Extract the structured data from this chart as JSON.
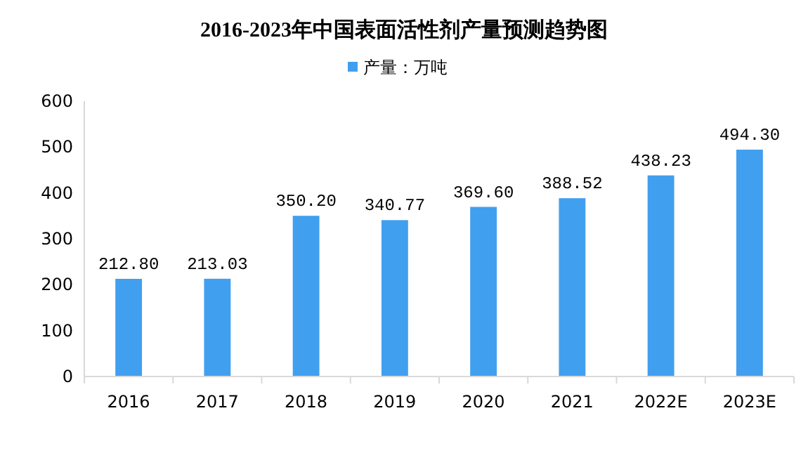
{
  "chart_data": {
    "type": "bar",
    "title": "2016-2023年中国表面活性剂产量预测趋势图",
    "categories": [
      "2016",
      "2017",
      "2018",
      "2019",
      "2020",
      "2021",
      "2022E",
      "2023E"
    ],
    "series": [
      {
        "name": "产量：万吨",
        "color": "#419ff0",
        "values": [
          212.8,
          213.03,
          350.2,
          340.77,
          369.6,
          388.52,
          438.23,
          494.3
        ],
        "value_labels": [
          "212.80",
          "213.03",
          "350.20",
          "340.77",
          "369.60",
          "388.52",
          "438.23",
          "494.30"
        ]
      }
    ],
    "ylim": [
      0,
      600
    ],
    "yticks": [
      0,
      100,
      200,
      300,
      400,
      500,
      600
    ],
    "grid": false,
    "legend": "top"
  }
}
